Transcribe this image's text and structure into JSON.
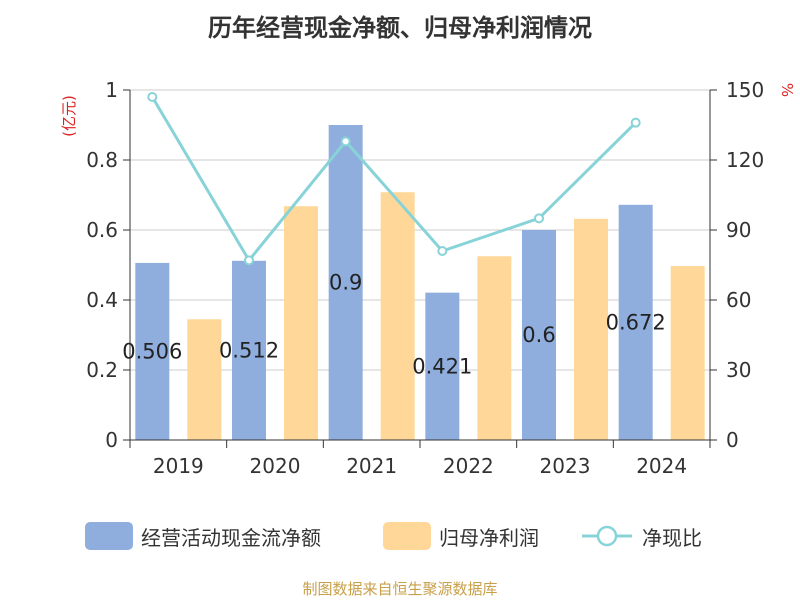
{
  "title": "历年经营现金净额、归母净利润情况",
  "source": "制图数据来自恒生聚源数据库",
  "colors": {
    "cash_flow": "#8faedd",
    "net_profit": "#ffd899",
    "ratio_line": "#88d3d8",
    "left_unit": "#dd2222"
  },
  "chart_data": {
    "type": "bar",
    "categories": [
      "2019",
      "2020",
      "2021",
      "2022",
      "2023",
      "2024"
    ],
    "series": [
      {
        "name": "经营活动现金流净额",
        "type": "bar",
        "axis": "left",
        "values": [
          0.506,
          0.512,
          0.9,
          0.421,
          0.6,
          0.672
        ],
        "data_labels": [
          "0.506",
          "0.512",
          "0.9",
          "0.421",
          "0.6",
          "0.672"
        ]
      },
      {
        "name": "归母净利润",
        "type": "bar",
        "axis": "left",
        "values": [
          0.345,
          0.668,
          0.708,
          0.525,
          0.632,
          0.497
        ]
      },
      {
        "name": "净现比",
        "type": "line",
        "axis": "right",
        "values": [
          147,
          77,
          128,
          81,
          95,
          136
        ]
      }
    ],
    "left_axis": {
      "label": "(亿元)",
      "ylim": [
        0,
        1
      ],
      "ticks": [
        "0",
        "0.2",
        "0.4",
        "0.6",
        "0.8",
        "1"
      ]
    },
    "right_axis": {
      "label": "%",
      "ylim": [
        0,
        150
      ],
      "ticks": [
        "0",
        "30",
        "60",
        "90",
        "120",
        "150"
      ]
    },
    "grid": true,
    "legend_position": "bottom"
  }
}
